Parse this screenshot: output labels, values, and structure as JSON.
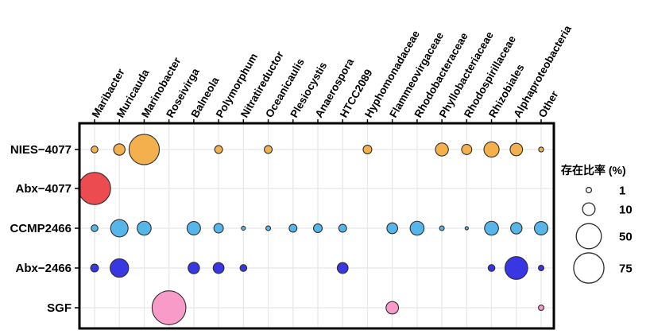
{
  "figure": {
    "kind": "bubble-dot-plot",
    "background": "#ffffff",
    "border_color": "#000000",
    "grid_color": "#e7e7e7",
    "bubble_outline": "#2e2e2e"
  },
  "chart_data": {
    "type": "scatter",
    "subtype": "bubble-matrix",
    "title": "",
    "xlabel": "",
    "ylabel": "",
    "grid": true,
    "x_categories": [
      "Maribacter",
      "Muricauda",
      "Marinobacter",
      "Roseivirga",
      "Balneola",
      "Polymorphum",
      "Nitratireductor",
      "Oceanicaulis",
      "Plesiocystis",
      "Anaerospora",
      "HTCC2089",
      "Hyphomonadaceae",
      "Flammeovirgaceae",
      "Rhodobacteraceae",
      "Phyllobacteriaceae",
      "Rhodospirillaceae",
      "Rhizobiales",
      "Alphaproteobacteria",
      "Other"
    ],
    "y_categories": [
      "NIES−4077",
      "Abx−4077",
      "CCMP2466",
      "Abx−2466",
      "SGF"
    ],
    "value_unit": "%",
    "size_scale_note": "radius = 1.4 + 2.04*sqrt(percent)",
    "series": [
      {
        "name": "NIES−4077",
        "color": "#F5B04E",
        "points": [
          {
            "col": 0,
            "v": 2
          },
          {
            "col": 1,
            "v": 8
          },
          {
            "col": 2,
            "v": 75
          },
          {
            "col": 5,
            "v": 3
          },
          {
            "col": 7,
            "v": 3
          },
          {
            "col": 11,
            "v": 4
          },
          {
            "col": 14,
            "v": 11
          },
          {
            "col": 15,
            "v": 6
          },
          {
            "col": 16,
            "v": 16
          },
          {
            "col": 17,
            "v": 10
          },
          {
            "col": 18,
            "v": 0.7
          }
        ]
      },
      {
        "name": "Abx−4077",
        "color": "#EC4B4F",
        "points": [
          {
            "col": 0,
            "v": 85
          }
        ]
      },
      {
        "name": "CCMP2466",
        "color": "#56B6E9",
        "points": [
          {
            "col": 0,
            "v": 2
          },
          {
            "col": 1,
            "v": 22
          },
          {
            "col": 2,
            "v": 13
          },
          {
            "col": 4,
            "v": 12
          },
          {
            "col": 5,
            "v": 5
          },
          {
            "col": 6,
            "v": 0.3
          },
          {
            "col": 7,
            "v": 0.6
          },
          {
            "col": 8,
            "v": 3
          },
          {
            "col": 9,
            "v": 4
          },
          {
            "col": 10,
            "v": 3
          },
          {
            "col": 12,
            "v": 7
          },
          {
            "col": 13,
            "v": 13
          },
          {
            "col": 14,
            "v": 0.6
          },
          {
            "col": 15,
            "v": 0.1
          },
          {
            "col": 16,
            "v": 13
          },
          {
            "col": 17,
            "v": 8
          },
          {
            "col": 18,
            "v": 12
          }
        ]
      },
      {
        "name": "Abx−2466",
        "color": "#3936E3",
        "points": [
          {
            "col": 0,
            "v": 3
          },
          {
            "col": 1,
            "v": 25
          },
          {
            "col": 4,
            "v": 8
          },
          {
            "col": 5,
            "v": 7
          },
          {
            "col": 6,
            "v": 2
          },
          {
            "col": 10,
            "v": 7
          },
          {
            "col": 16,
            "v": 2
          },
          {
            "col": 17,
            "v": 40
          },
          {
            "col": 18,
            "v": 1
          }
        ]
      },
      {
        "name": "SGF",
        "color": "#F99BC8",
        "points": [
          {
            "col": 3,
            "v": 95
          },
          {
            "col": 12,
            "v": 10
          },
          {
            "col": 18,
            "v": 1
          }
        ]
      }
    ],
    "legend": {
      "title": "存在比率 (%)",
      "position": "right",
      "sizes": [
        1,
        10,
        50,
        75
      ],
      "circle_fill": "#ffffff",
      "circle_outline": "#2b2b2b"
    }
  }
}
